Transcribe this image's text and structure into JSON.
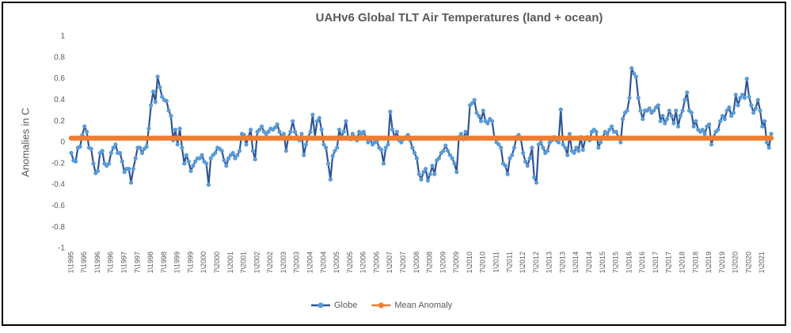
{
  "chart_data": {
    "type": "line",
    "title": "UAHv6 Global TLT Air Temperatures (land + ocean)",
    "y_label": "Anomalies in C",
    "categories": [
      "1\\1995",
      null,
      null,
      null,
      null,
      null,
      "7\\1995",
      null,
      null,
      null,
      null,
      null,
      "1\\1996",
      null,
      null,
      null,
      null,
      null,
      "7\\1996",
      null,
      null,
      null,
      null,
      null,
      "1\\1997",
      null,
      null,
      null,
      null,
      null,
      "7\\1997",
      null,
      null,
      null,
      null,
      null,
      "1\\1998",
      null,
      null,
      null,
      null,
      null,
      "7\\1998",
      null,
      null,
      null,
      null,
      null,
      "1\\1999",
      null,
      null,
      null,
      null,
      null,
      "7\\1999",
      null,
      null,
      null,
      null,
      null,
      "1\\2000",
      null,
      null,
      null,
      null,
      null,
      "7\\2000",
      null,
      null,
      null,
      null,
      null,
      "1\\2001",
      null,
      null,
      null,
      null,
      null,
      "7\\2001",
      null,
      null,
      null,
      null,
      null,
      "1\\2002",
      null,
      null,
      null,
      null,
      null,
      "7\\2002",
      null,
      null,
      null,
      null,
      null,
      "1\\2003",
      null,
      null,
      null,
      null,
      null,
      "7\\2003",
      null,
      null,
      null,
      null,
      null,
      "1\\2004",
      null,
      null,
      null,
      null,
      null,
      "7\\2004",
      null,
      null,
      null,
      null,
      null,
      "1\\2005",
      null,
      null,
      null,
      null,
      null,
      "7\\2005",
      null,
      null,
      null,
      null,
      null,
      "1\\2006",
      null,
      null,
      null,
      null,
      null,
      "7\\2006",
      null,
      null,
      null,
      null,
      null,
      "1\\2007",
      null,
      null,
      null,
      null,
      null,
      "7\\2007",
      null,
      null,
      null,
      null,
      null,
      "1\\2008",
      null,
      null,
      null,
      null,
      null,
      "7\\2008",
      null,
      null,
      null,
      null,
      null,
      "1\\2009",
      null,
      null,
      null,
      null,
      null,
      "7\\2009",
      null,
      null,
      null,
      null,
      null,
      "1\\2010",
      null,
      null,
      null,
      null,
      null,
      "7\\2010",
      null,
      null,
      null,
      null,
      null,
      "1\\2011",
      null,
      null,
      null,
      null,
      null,
      "7\\2011",
      null,
      null,
      null,
      null,
      null,
      "1\\2012",
      null,
      null,
      null,
      null,
      null,
      "7\\2012",
      null,
      null,
      null,
      null,
      null,
      "1\\2013",
      null,
      null,
      null,
      null,
      null,
      "7\\2013",
      null,
      null,
      null,
      null,
      null,
      "1\\2014",
      null,
      null,
      null,
      null,
      null,
      "7\\2014",
      null,
      null,
      null,
      null,
      null,
      "1\\2015",
      null,
      null,
      null,
      null,
      null,
      "7\\2015",
      null,
      null,
      null,
      null,
      null,
      "1\\2016",
      null,
      null,
      null,
      null,
      null,
      "7\\2016",
      null,
      null,
      null,
      null,
      null,
      "1\\2017",
      null,
      null,
      null,
      null,
      null,
      "7\\2017",
      null,
      null,
      null,
      null,
      null,
      "1\\2018",
      null,
      null,
      null,
      null,
      null,
      "7\\2018",
      null,
      null,
      null,
      null,
      null,
      "1\\2019",
      null,
      null,
      null,
      null,
      null,
      "7\\2019",
      null,
      null,
      null,
      null,
      null,
      "1\\2020",
      null,
      null,
      null,
      null,
      null,
      "7\\2020",
      null,
      null,
      null,
      null,
      null,
      "1\\2021",
      null,
      null,
      null,
      null
    ],
    "series": [
      {
        "name": "Globe",
        "color": "#2f5597",
        "marker_color": "#5b9bd5",
        "values": [
          -0.1,
          -0.17,
          -0.18,
          -0.05,
          -0.04,
          0.07,
          0.15,
          0.1,
          -0.05,
          -0.06,
          -0.2,
          -0.29,
          -0.27,
          -0.1,
          -0.08,
          -0.2,
          -0.22,
          -0.2,
          -0.1,
          -0.05,
          -0.02,
          -0.1,
          -0.1,
          -0.18,
          -0.28,
          -0.25,
          -0.25,
          -0.38,
          -0.25,
          -0.15,
          -0.05,
          -0.05,
          -0.1,
          -0.06,
          -0.04,
          0.13,
          0.35,
          0.48,
          0.38,
          0.62,
          0.52,
          0.43,
          0.4,
          0.39,
          0.3,
          0.25,
          0.02,
          0.12,
          -0.02,
          0.13,
          -0.05,
          -0.2,
          -0.12,
          -0.18,
          -0.27,
          -0.22,
          -0.18,
          -0.15,
          -0.15,
          -0.12,
          -0.18,
          -0.2,
          -0.4,
          -0.15,
          -0.12,
          -0.1,
          -0.05,
          -0.06,
          -0.08,
          -0.17,
          -0.22,
          -0.15,
          -0.12,
          -0.1,
          -0.15,
          -0.12,
          -0.08,
          0.08,
          0.07,
          -0.02,
          0.05,
          0.12,
          -0.08,
          -0.16,
          0.1,
          0.12,
          0.15,
          0.1,
          0.08,
          0.1,
          0.13,
          0.12,
          0.14,
          0.17,
          0.1,
          0.05,
          0.08,
          -0.08,
          0.05,
          0.1,
          0.2,
          0.1,
          0.05,
          0.02,
          0.08,
          -0.12,
          -0.02,
          0.05,
          0.1,
          0.26,
          0.05,
          0.2,
          0.23,
          0.12,
          -0.02,
          -0.05,
          -0.2,
          -0.35,
          -0.13,
          -0.08,
          -0.05,
          0.12,
          0.05,
          0.1,
          0.2,
          0.05,
          0.03,
          0.08,
          0.05,
          0.02,
          0.1,
          0.08,
          0.1,
          0.05,
          0.0,
          0.03,
          -0.02,
          0.0,
          0.01,
          -0.05,
          -0.07,
          -0.2,
          -0.05,
          -0.02,
          0.29,
          0.12,
          0.05,
          0.1,
          0.02,
          0.0,
          0.03,
          0.05,
          0.07,
          0.02,
          -0.05,
          -0.1,
          -0.15,
          -0.3,
          -0.35,
          -0.28,
          -0.25,
          -0.36,
          -0.3,
          -0.22,
          -0.3,
          -0.17,
          -0.15,
          -0.1,
          -0.08,
          -0.03,
          -0.08,
          -0.12,
          -0.15,
          -0.2,
          -0.28,
          0.05,
          0.08,
          0.03,
          0.1,
          0.05,
          0.35,
          0.37,
          0.4,
          0.28,
          0.25,
          0.2,
          0.3,
          0.2,
          0.18,
          0.22,
          0.2,
          0.05,
          0.0,
          -0.02,
          -0.05,
          -0.2,
          -0.22,
          -0.3,
          -0.15,
          -0.12,
          -0.05,
          0.05,
          0.07,
          0.03,
          -0.1,
          -0.18,
          -0.22,
          -0.15,
          -0.05,
          -0.33,
          -0.38,
          -0.02,
          0.0,
          -0.05,
          -0.1,
          -0.08,
          0.0,
          0.02,
          0.05,
          0.02,
          0.0,
          0.31,
          -0.02,
          -0.05,
          -0.12,
          0.08,
          -0.08,
          -0.1,
          -0.05,
          -0.08,
          0.05,
          -0.07,
          0.03,
          0.05,
          0.02,
          0.1,
          0.12,
          0.1,
          -0.05,
          0.0,
          0.05,
          0.1,
          0.08,
          0.12,
          0.15,
          0.1,
          0.1,
          0.05,
          0.0,
          0.22,
          0.28,
          0.3,
          0.42,
          0.7,
          0.65,
          0.62,
          0.42,
          0.3,
          0.22,
          0.3,
          0.3,
          0.32,
          0.28,
          0.3,
          0.33,
          0.35,
          0.2,
          0.25,
          0.18,
          0.22,
          0.3,
          0.25,
          0.18,
          0.3,
          0.15,
          0.25,
          0.3,
          0.4,
          0.47,
          0.3,
          0.28,
          0.15,
          0.2,
          0.12,
          0.1,
          0.12,
          0.08,
          0.15,
          0.17,
          -0.02,
          0.05,
          0.1,
          0.12,
          0.2,
          0.25,
          0.22,
          0.3,
          0.33,
          0.25,
          0.28,
          0.45,
          0.35,
          0.42,
          0.45,
          0.42,
          0.6,
          0.43,
          0.35,
          0.28,
          0.32,
          0.4,
          0.3,
          0.15,
          0.2,
          0.0,
          -0.05,
          0.08
        ]
      },
      {
        "name": "Mean Anomaly",
        "color": "#ed7d31",
        "marker_color": "#ed7d31",
        "values": [
          0.04,
          0.04,
          0.04,
          0.04,
          0.04,
          0.04,
          0.04,
          0.04,
          0.04,
          0.04,
          0.04,
          0.04,
          0.04,
          0.04,
          0.04,
          0.04,
          0.04,
          0.04,
          0.04,
          0.04,
          0.04,
          0.04,
          0.04,
          0.04,
          0.04,
          0.04,
          0.04,
          0.04,
          0.04,
          0.04,
          0.04,
          0.04,
          0.04,
          0.04,
          0.04,
          0.04,
          0.04,
          0.04,
          0.04,
          0.04,
          0.04,
          0.04,
          0.04,
          0.04,
          0.04,
          0.04,
          0.04,
          0.04,
          0.04,
          0.04,
          0.04,
          0.04,
          0.04,
          0.04,
          0.04,
          0.04,
          0.04,
          0.04,
          0.04,
          0.04,
          0.04,
          0.04,
          0.04,
          0.04,
          0.04,
          0.04,
          0.04,
          0.04,
          0.04,
          0.04,
          0.04,
          0.04,
          0.04,
          0.04,
          0.04,
          0.04,
          0.04,
          0.04,
          0.04,
          0.04,
          0.04,
          0.04,
          0.04,
          0.04,
          0.04,
          0.04,
          0.04,
          0.04,
          0.04,
          0.04,
          0.04,
          0.04,
          0.04,
          0.04,
          0.04,
          0.04,
          0.04,
          0.04,
          0.04,
          0.04,
          0.04,
          0.04,
          0.04,
          0.04,
          0.04,
          0.04,
          0.04,
          0.04,
          0.04,
          0.04,
          0.04,
          0.04,
          0.04,
          0.04,
          0.04,
          0.04,
          0.04,
          0.04,
          0.04,
          0.04,
          0.04,
          0.04,
          0.04,
          0.04,
          0.04,
          0.04,
          0.04,
          0.04,
          0.04,
          0.04,
          0.04,
          0.04,
          0.04,
          0.04,
          0.04,
          0.04,
          0.04,
          0.04,
          0.04,
          0.04,
          0.04,
          0.04,
          0.04,
          0.04,
          0.04,
          0.04,
          0.04,
          0.04,
          0.04,
          0.04,
          0.04,
          0.04,
          0.04,
          0.04,
          0.04,
          0.04,
          0.04,
          0.04,
          0.04,
          0.04,
          0.04,
          0.04,
          0.04,
          0.04,
          0.04,
          0.04,
          0.04,
          0.04,
          0.04,
          0.04,
          0.04,
          0.04,
          0.04,
          0.04,
          0.04,
          0.04,
          0.04,
          0.04,
          0.04,
          0.04,
          0.04,
          0.04,
          0.04,
          0.04,
          0.04,
          0.04,
          0.04,
          0.04,
          0.04,
          0.04,
          0.04,
          0.04,
          0.04,
          0.04,
          0.04,
          0.04,
          0.04,
          0.04,
          0.04,
          0.04,
          0.04,
          0.04,
          0.04,
          0.04,
          0.04,
          0.04,
          0.04,
          0.04,
          0.04,
          0.04,
          0.04,
          0.04,
          0.04,
          0.04,
          0.04,
          0.04,
          0.04,
          0.04,
          0.04,
          0.04,
          0.04,
          0.04,
          0.04,
          0.04,
          0.04,
          0.04,
          0.04,
          0.04,
          0.04,
          0.04,
          0.04,
          0.04,
          0.04,
          0.04,
          0.04,
          0.04,
          0.04,
          0.04,
          0.04,
          0.04,
          0.04,
          0.04,
          0.04,
          0.04,
          0.04,
          0.04,
          0.04,
          0.04,
          0.04,
          0.04,
          0.04,
          0.04,
          0.04,
          0.04,
          0.04,
          0.04,
          0.04,
          0.04,
          0.04,
          0.04,
          0.04,
          0.04,
          0.04,
          0.04,
          0.04,
          0.04,
          0.04,
          0.04,
          0.04,
          0.04,
          0.04,
          0.04,
          0.04,
          0.04,
          0.04,
          0.04,
          0.04,
          0.04,
          0.04,
          0.04,
          0.04,
          0.04,
          0.04,
          0.04,
          0.04,
          0.04,
          0.04,
          0.04,
          0.04,
          0.04,
          0.04,
          0.04,
          0.04,
          0.04,
          0.04,
          0.04,
          0.04,
          0.04,
          0.04,
          0.04,
          0.04,
          0.04,
          0.04,
          0.04,
          0.04,
          0.04,
          0.04,
          0.04,
          0.04,
          0.04,
          0.04,
          0.04,
          0.04,
          0.04,
          0.04,
          0.04,
          0.04
        ]
      }
    ],
    "ylim": [
      -1,
      1
    ],
    "yticks": [
      -1,
      -0.8,
      -0.6,
      -0.4,
      -0.2,
      0,
      0.2,
      0.4,
      0.6,
      0.8,
      1
    ],
    "grid": false,
    "legend": "bottom"
  }
}
